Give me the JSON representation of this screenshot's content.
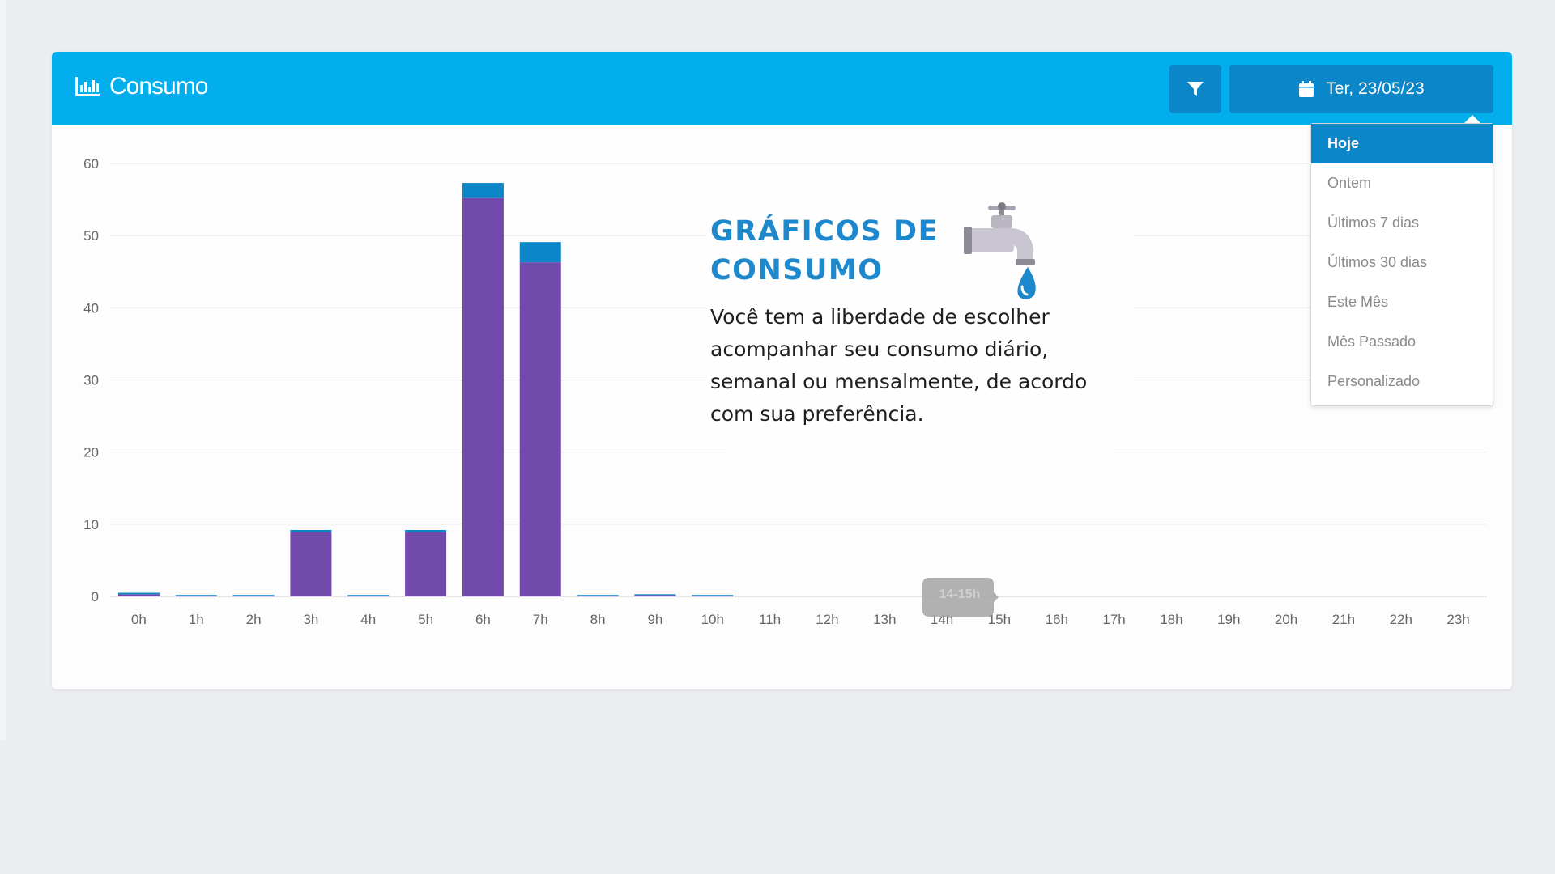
{
  "header": {
    "title": "Consumo",
    "date_label": "Ter, 23/05/23"
  },
  "dropdown": {
    "items": [
      "Hoje",
      "Ontem",
      "Últimos 7 dias",
      "Últimos 30 dias",
      "Este Mês",
      "Mês Passado",
      "Personalizado"
    ],
    "selected": "Hoje"
  },
  "overlay": {
    "title_line1": "GRÁFICOS DE",
    "title_line2": "CONSUMO",
    "text": "Você tem a liberdade de escolher acompanhar seu consumo diário, semanal ou mensalmente, de acordo com sua preferência."
  },
  "tooltip": "14-15h",
  "colors": {
    "header": "#03aeec",
    "button": "#0a86c9",
    "series_lower": "#724aab",
    "series_upper": "#0a86c9",
    "overlay_title": "#1e88cc"
  },
  "chart_data": {
    "type": "bar",
    "stacked": true,
    "categories": [
      "0h",
      "1h",
      "2h",
      "3h",
      "4h",
      "5h",
      "6h",
      "7h",
      "8h",
      "9h",
      "10h",
      "11h",
      "12h",
      "13h",
      "14h",
      "15h",
      "16h",
      "17h",
      "18h",
      "19h",
      "20h",
      "21h",
      "22h",
      "23h"
    ],
    "series": [
      {
        "values": [
          0.3,
          0.1,
          0.1,
          8.9,
          0.1,
          8.9,
          55.2,
          46.3,
          0.1,
          0.2,
          0.1,
          0,
          0,
          0,
          0,
          0,
          0,
          0,
          0,
          0,
          0,
          0,
          0,
          0
        ]
      },
      {
        "values": [
          0.2,
          0.1,
          0.1,
          0.3,
          0.1,
          0.3,
          2.1,
          2.8,
          0.1,
          0.1,
          0.1,
          0,
          0,
          0,
          0,
          0,
          0,
          0,
          0,
          0,
          0,
          0,
          0,
          0
        ]
      }
    ],
    "ylim": [
      0,
      60
    ],
    "yticks": [
      0,
      10,
      20,
      30,
      40,
      50,
      60
    ],
    "grid": true
  }
}
